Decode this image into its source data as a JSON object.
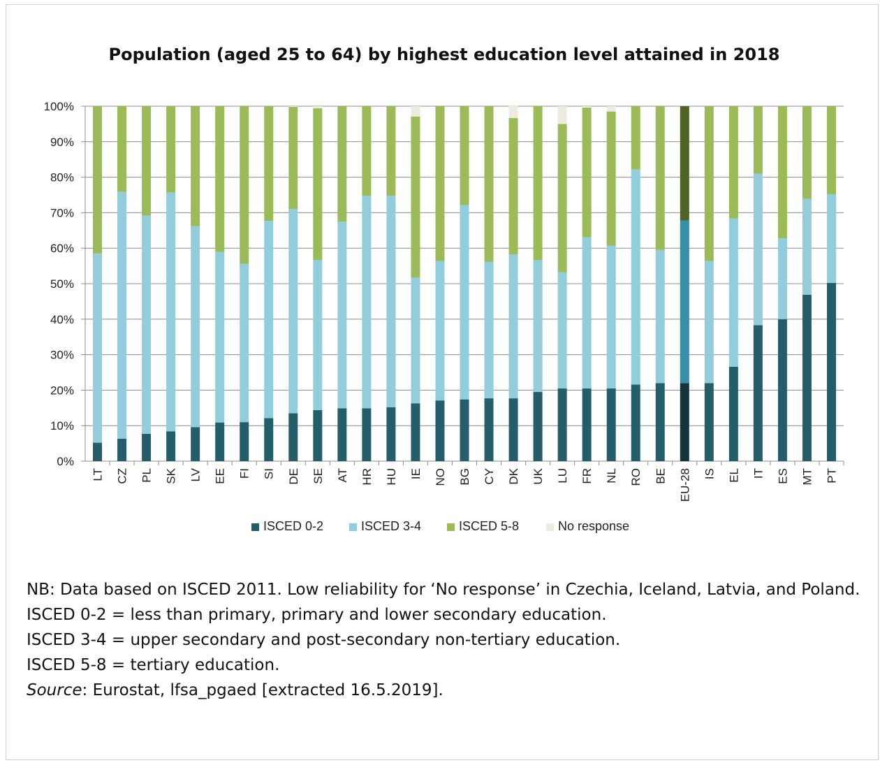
{
  "chart_data": {
    "type": "bar",
    "stacked": true,
    "title": "Population (aged 25 to 64) by highest education level attained in 2018",
    "categories": [
      "LT",
      "CZ",
      "PL",
      "SK",
      "LV",
      "EE",
      "FI",
      "SI",
      "DE",
      "SE",
      "AT",
      "HR",
      "HU",
      "IE",
      "NO",
      "BG",
      "CY",
      "DK",
      "UK",
      "LU",
      "FR",
      "NL",
      "RO",
      "BE",
      "EU-28",
      "IS",
      "EL",
      "IT",
      "ES",
      "MT",
      "PT"
    ],
    "series": [
      {
        "name": "ISCED 0-2",
        "color": "#255e6b",
        "highlight_color": "#16343b",
        "values": [
          5.2,
          6.3,
          7.7,
          8.4,
          9.6,
          10.9,
          11.0,
          12.1,
          13.5,
          14.4,
          14.9,
          14.9,
          15.2,
          16.3,
          17.1,
          17.4,
          17.7,
          17.7,
          19.5,
          20.5,
          20.5,
          20.5,
          21.6,
          22.0,
          22.0,
          22.0,
          26.6,
          38.3,
          40.0,
          46.9,
          50.2
        ]
      },
      {
        "name": "ISCED 3-4",
        "color": "#92cddc",
        "highlight_color": "#368ea8",
        "values": [
          53.3,
          69.6,
          61.5,
          67.3,
          56.6,
          48.0,
          44.6,
          55.6,
          57.5,
          42.3,
          52.6,
          59.9,
          59.6,
          35.4,
          39.3,
          54.7,
          38.5,
          40.5,
          37.2,
          32.7,
          42.6,
          40.2,
          60.6,
          37.5,
          45.8,
          34.4,
          41.8,
          42.7,
          22.8,
          27.0,
          25.0
        ]
      },
      {
        "name": "ISCED 5-8",
        "color": "#9bbb59",
        "highlight_color": "#4f6228",
        "values": [
          41.5,
          24.1,
          30.8,
          24.3,
          33.8,
          41.1,
          44.4,
          32.3,
          28.8,
          42.7,
          32.5,
          25.2,
          25.2,
          45.4,
          43.6,
          27.9,
          43.8,
          38.5,
          43.3,
          41.8,
          36.5,
          37.8,
          17.8,
          40.5,
          32.2,
          43.6,
          31.6,
          19.0,
          37.2,
          26.1,
          24.8
        ]
      },
      {
        "name": "No response",
        "color": "#eeece1",
        "highlight_color": "#eeece1",
        "values": [
          0,
          0,
          0,
          0,
          0,
          0,
          0,
          0,
          0.2,
          0.6,
          0,
          0,
          0,
          2.9,
          0,
          0,
          0,
          3.6,
          0,
          5.0,
          0.4,
          1.5,
          0,
          0,
          0,
          0,
          0,
          0,
          0,
          0,
          0
        ]
      }
    ],
    "highlight_category": "EU-28",
    "y_ticks": [
      "0%",
      "10%",
      "20%",
      "30%",
      "40%",
      "50%",
      "60%",
      "70%",
      "80%",
      "90%",
      "100%"
    ],
    "ylim": [
      0,
      100
    ],
    "grid": true,
    "legend_position": "bottom"
  },
  "notes": {
    "line1": "NB: Data based on ISCED 2011. Low reliability for ‘No response’ in Czechia, Iceland, Latvia, and Poland.",
    "line2": "ISCED 0-2 = less than primary, primary and lower secondary education.",
    "line3": "ISCED 3-4 = upper secondary and post-secondary non-tertiary education.",
    "line4": "ISCED 5-8 = tertiary education.",
    "source_label": "Source",
    "source_text": ": Eurostat, lfsa_pgaed [extracted 16.5.2019]."
  }
}
